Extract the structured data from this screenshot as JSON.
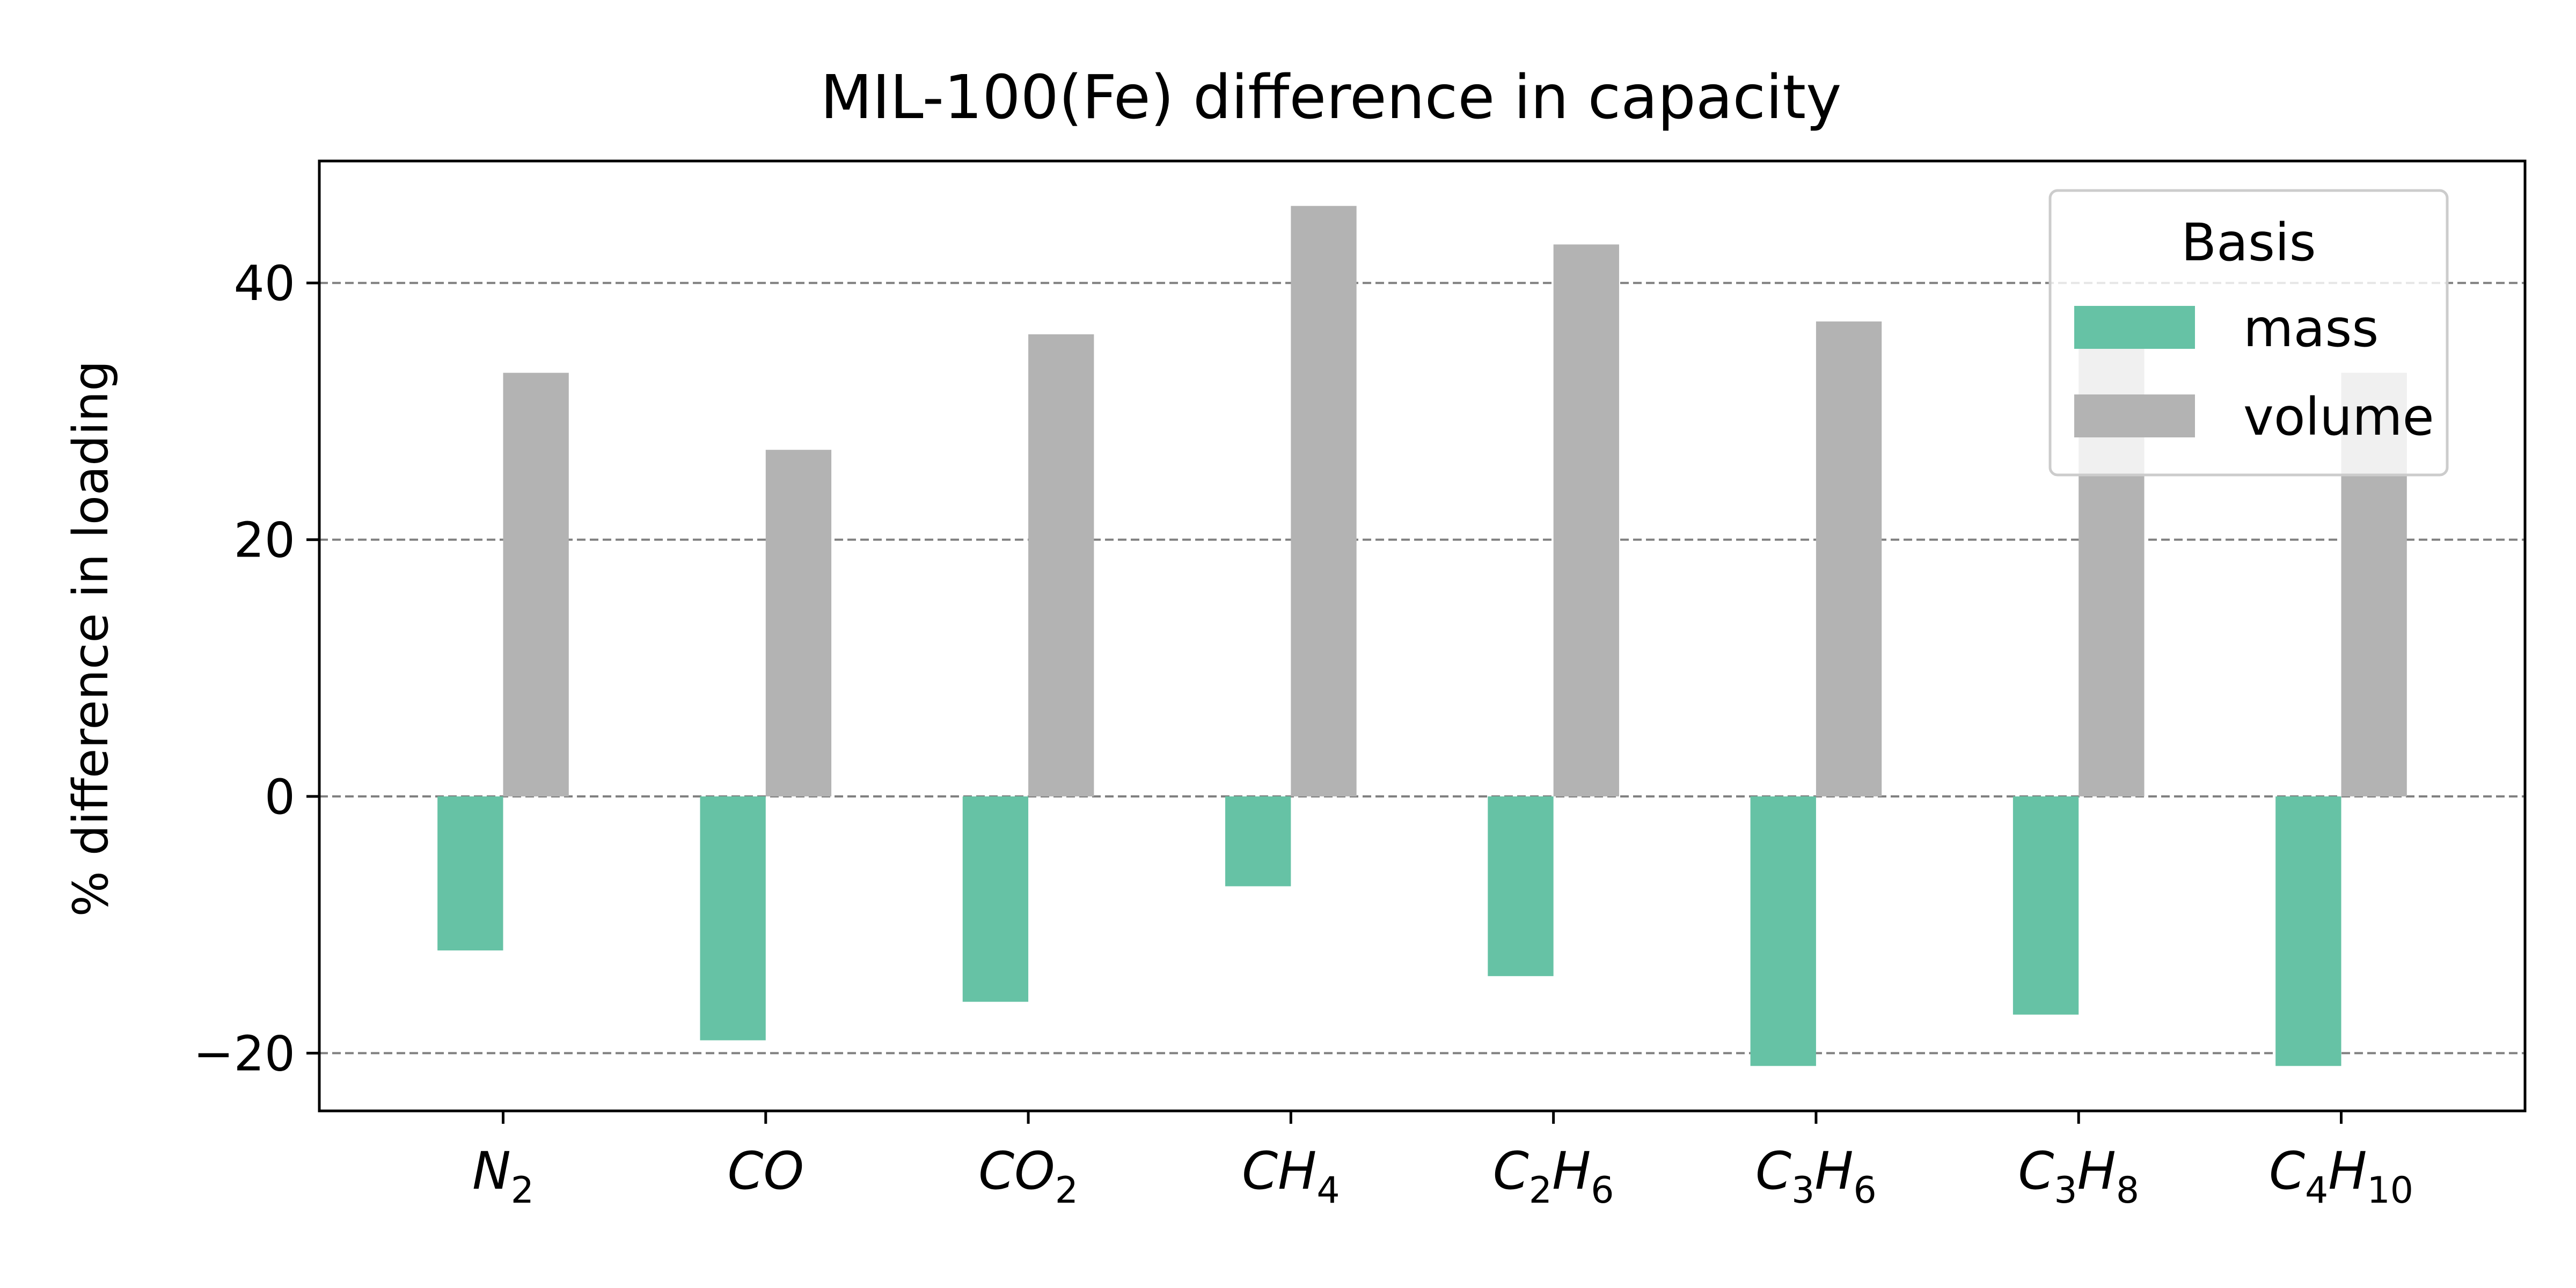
{
  "chart_data": {
    "type": "bar",
    "title": "MIL-100(Fe) difference in capacity",
    "xlabel": "",
    "ylabel": "% difference in loading",
    "categories": [
      "N2",
      "CO",
      "CO2",
      "CH4",
      "C2H6",
      "C3H6",
      "C3H8",
      "C4H10"
    ],
    "category_labels": [
      [
        [
          "N",
          ""
        ],
        [
          "2",
          "sub"
        ]
      ],
      [
        [
          "CO",
          ""
        ]
      ],
      [
        [
          "CO",
          ""
        ],
        [
          "2",
          "sub"
        ]
      ],
      [
        [
          "CH",
          ""
        ],
        [
          "4",
          "sub"
        ]
      ],
      [
        [
          "C",
          ""
        ],
        [
          "2",
          "sub"
        ],
        [
          "H",
          ""
        ],
        [
          "6",
          "sub"
        ]
      ],
      [
        [
          "C",
          ""
        ],
        [
          "3",
          "sub"
        ],
        [
          "H",
          ""
        ],
        [
          "6",
          "sub"
        ]
      ],
      [
        [
          "C",
          ""
        ],
        [
          "3",
          "sub"
        ],
        [
          "H",
          ""
        ],
        [
          "8",
          "sub"
        ]
      ],
      [
        [
          "C",
          ""
        ],
        [
          "4",
          "sub"
        ],
        [
          "H",
          ""
        ],
        [
          "10",
          "sub"
        ]
      ]
    ],
    "series": [
      {
        "name": "mass",
        "color": "#66c2a5",
        "values": [
          -12,
          -19,
          -16,
          -7,
          -14,
          -21,
          -17,
          -21
        ]
      },
      {
        "name": "volume",
        "color": "#b3b3b3",
        "values": [
          33,
          27,
          36,
          46,
          43,
          37,
          35,
          33
        ]
      }
    ],
    "ylim": [
      -24.5,
      49.5
    ],
    "yticks": [
      -20,
      0,
      20,
      40
    ],
    "ytick_labels": [
      "−20",
      "0",
      "20",
      "40"
    ],
    "grid": {
      "axis": "y",
      "style": "dashed",
      "color": "#808080"
    },
    "legend": {
      "title": "Basis",
      "position": "top-right"
    }
  }
}
